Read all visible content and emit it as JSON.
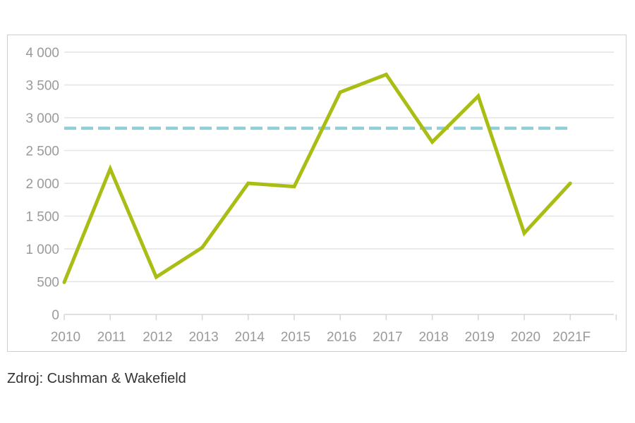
{
  "chart_data": {
    "type": "line",
    "categories": [
      "2010",
      "2011",
      "2012",
      "2013",
      "2014",
      "2015",
      "2016",
      "2017",
      "2018",
      "2019",
      "2020",
      "2021F"
    ],
    "series": [
      {
        "values": [
          490,
          2220,
          570,
          1020,
          2000,
          1950,
          3390,
          3660,
          2630,
          3330,
          1240,
          2000
        ],
        "color": "#aabd14"
      }
    ],
    "reference_line": {
      "value": 2840,
      "style": "dashed",
      "color": "#8ecfdb"
    },
    "y_tick_labels": [
      "0",
      "500",
      "1 000",
      "1 500",
      "2 000",
      "2 500",
      "3 000",
      "3 500",
      "4 000"
    ],
    "ylim": [
      0,
      4000
    ],
    "y_step": 500,
    "grid": true,
    "title": "",
    "xlabel": "",
    "ylabel": ""
  },
  "source": "Zdroj: Cushman & Wakefield"
}
